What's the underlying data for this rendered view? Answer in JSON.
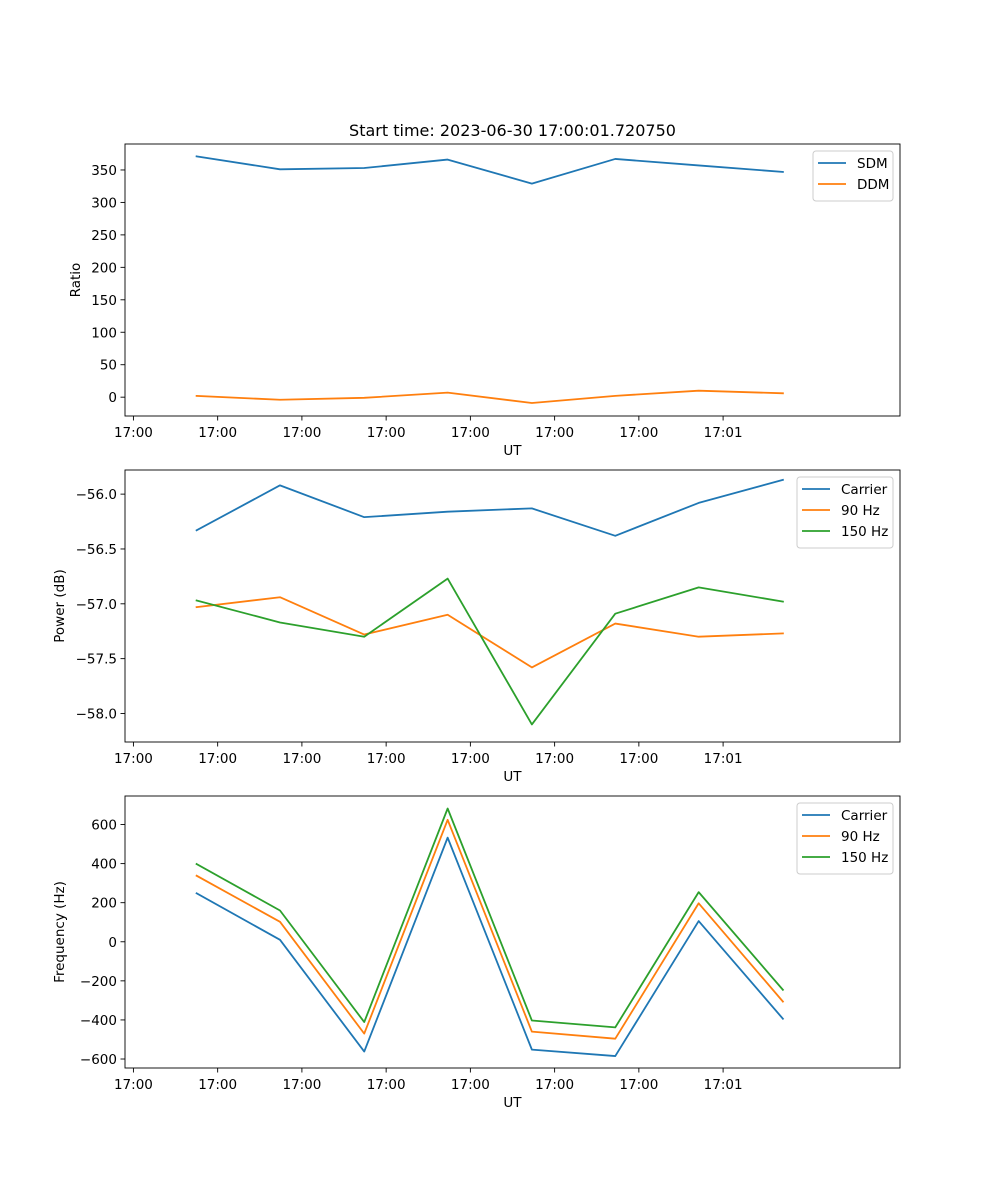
{
  "chart_data": [
    {
      "type": "line",
      "title": "Start time: 2023-06-30 17:00:01.720750",
      "xlabel": "UT",
      "ylabel": "Ratio",
      "x_tick_labels": [
        "17:00",
        "17:00",
        "17:00",
        "17:00",
        "17:00",
        "17:00",
        "17:00",
        "17:01"
      ],
      "y_ticks": [
        0,
        50,
        100,
        150,
        200,
        250,
        300,
        350
      ],
      "y_tick_labels": [
        "0",
        "50",
        "100",
        "150",
        "200",
        "250",
        "300",
        "350"
      ],
      "ylim": [
        -29,
        390
      ],
      "xlim": [
        -0.1,
        9.1
      ],
      "x": [
        0.75,
        1.74,
        2.74,
        3.73,
        4.73,
        5.72,
        6.71,
        7.71
      ],
      "series": [
        {
          "name": "SDM",
          "color": "#1f77b4",
          "values": [
            371,
            351,
            353,
            366,
            329,
            367,
            357,
            347
          ]
        },
        {
          "name": "DDM",
          "color": "#ff7f0e",
          "values": [
            2,
            -4,
            -1,
            7,
            -9,
            2,
            10,
            6
          ]
        }
      ],
      "legend": "top-right",
      "grid": false
    },
    {
      "type": "line",
      "title": "",
      "xlabel": "UT",
      "ylabel": "Power (dB)",
      "x_tick_labels": [
        "17:00",
        "17:00",
        "17:00",
        "17:00",
        "17:00",
        "17:00",
        "17:00",
        "17:01"
      ],
      "y_ticks": [
        -58.0,
        -57.5,
        -57.0,
        -56.5,
        -56.0
      ],
      "y_tick_labels": [
        "−58.0",
        "−57.5",
        "−57.0",
        "−56.5",
        "−56.0"
      ],
      "ylim": [
        -58.26,
        -55.78
      ],
      "xlim": [
        -0.1,
        9.1
      ],
      "x": [
        0.75,
        1.74,
        2.74,
        3.73,
        4.73,
        5.72,
        6.71,
        7.71
      ],
      "series": [
        {
          "name": "Carrier",
          "color": "#1f77b4",
          "values": [
            -56.33,
            -55.92,
            -56.21,
            -56.16,
            -56.13,
            -56.38,
            -56.08,
            -55.87
          ]
        },
        {
          "name": "90 Hz",
          "color": "#ff7f0e",
          "values": [
            -57.03,
            -56.94,
            -57.28,
            -57.1,
            -57.58,
            -57.18,
            -57.3,
            -57.27
          ]
        },
        {
          "name": "150 Hz",
          "color": "#2ca02c",
          "values": [
            -56.97,
            -57.17,
            -57.3,
            -56.77,
            -58.1,
            -57.09,
            -56.85,
            -56.98
          ]
        }
      ],
      "legend": "top-right",
      "grid": false
    },
    {
      "type": "line",
      "title": "",
      "xlabel": "UT",
      "ylabel": "Frequency (Hz)",
      "x_tick_labels": [
        "17:00",
        "17:00",
        "17:00",
        "17:00",
        "17:00",
        "17:00",
        "17:00",
        "17:01"
      ],
      "y_ticks": [
        -600,
        -400,
        -200,
        0,
        200,
        400,
        600
      ],
      "y_tick_labels": [
        "−600",
        "−400",
        "−200",
        "0",
        "200",
        "400",
        "600"
      ],
      "ylim": [
        -646,
        746
      ],
      "xlim": [
        -0.1,
        9.1
      ],
      "x": [
        0.75,
        1.74,
        2.74,
        3.73,
        4.73,
        5.72,
        6.71,
        7.71
      ],
      "series": [
        {
          "name": "Carrier",
          "color": "#1f77b4",
          "values": [
            248,
            10,
            -562,
            533,
            -552,
            -585,
            106,
            -394
          ]
        },
        {
          "name": "90 Hz",
          "color": "#ff7f0e",
          "values": [
            338,
            102,
            -470,
            624,
            -460,
            -496,
            197,
            -306
          ]
        },
        {
          "name": "150 Hz",
          "color": "#2ca02c",
          "values": [
            398,
            160,
            -411,
            682,
            -403,
            -438,
            254,
            -246
          ]
        }
      ],
      "legend": "top-right",
      "grid": false
    }
  ]
}
